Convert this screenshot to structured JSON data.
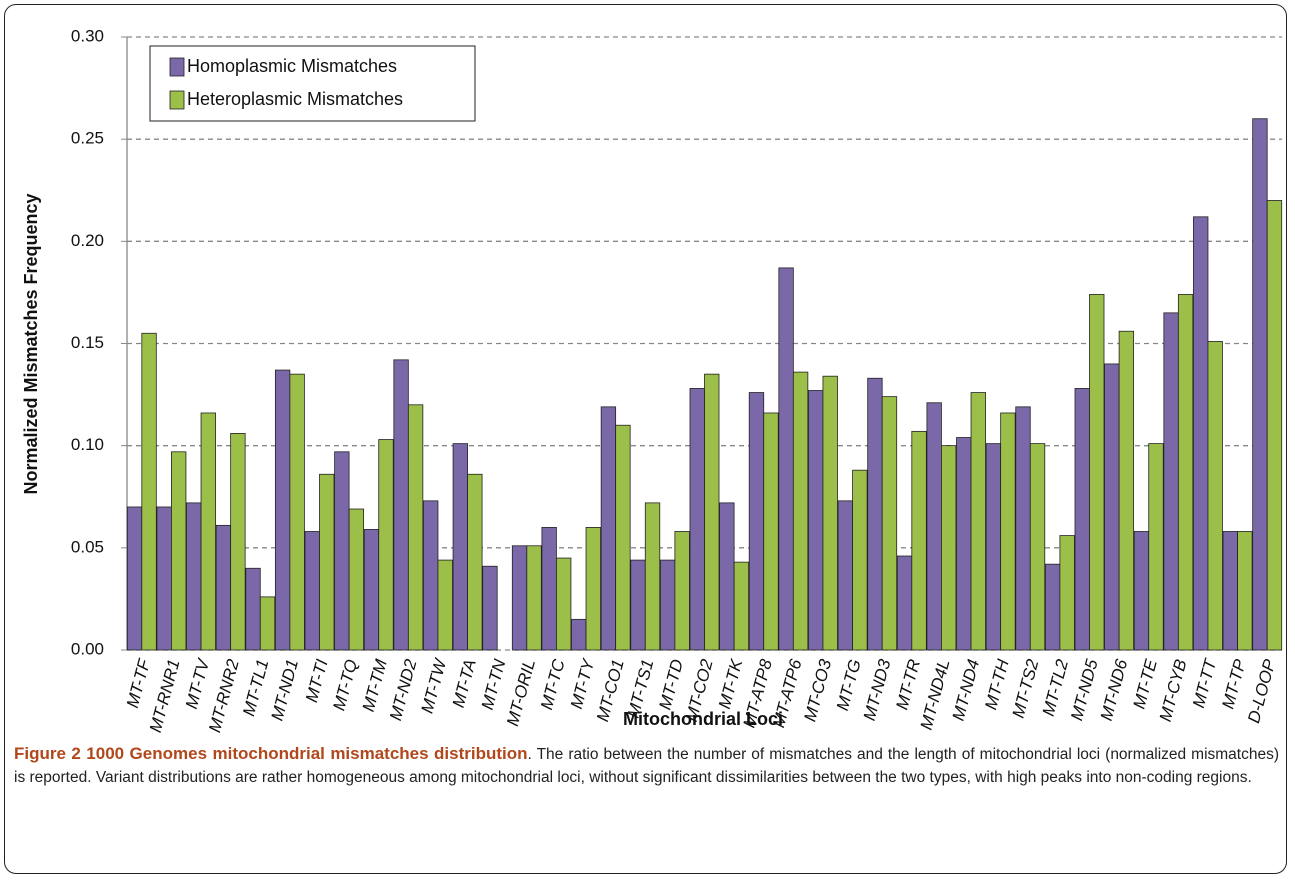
{
  "chart_data": {
    "type": "bar",
    "y_label": "Normalized Mismatches Frequency",
    "x_label": "Mitochondrial Loci",
    "categories": [
      "MT-TF",
      "MT-RNR1",
      "MT-TV",
      "MT-RNR2",
      "MT-TL1",
      "MT-ND1",
      "MT-TI",
      "MT-TQ",
      "MT-TM",
      "MT-ND2",
      "MT-TW",
      "MT-TA",
      "MT-TN",
      "MT-ORIL",
      "MT-TC",
      "MT-TY",
      "MT-CO1",
      "MT-TS1",
      "MT-TD",
      "MT-CO2",
      "MT-TK",
      "MT-ATP8",
      "MT-ATP6",
      "MT-CO3",
      "MT-TG",
      "MT-ND3",
      "MT-TR",
      "MT-ND4L",
      "MT-ND4",
      "MT-TH",
      "MT-TS2",
      "MT-TL2",
      "MT-ND5",
      "MT-ND6",
      "MT-TE",
      "MT-CYB",
      "MT-TT",
      "MT-TP",
      "D-LOOP"
    ],
    "series": [
      {
        "name": "Homoplasmic Mismatches",
        "color": "#7b68a8",
        "values": [
          0.07,
          0.07,
          0.072,
          0.061,
          0.04,
          0.137,
          0.058,
          0.097,
          0.059,
          0.142,
          0.073,
          0.101,
          0.041,
          0.051,
          0.06,
          0.015,
          0.119,
          0.044,
          0.044,
          0.128,
          0.072,
          0.126,
          0.187,
          0.127,
          0.073,
          0.133,
          0.046,
          0.121,
          0.104,
          0.101,
          0.119,
          0.042,
          0.128,
          0.14,
          0.058,
          0.165,
          0.212,
          0.058,
          0.26
        ]
      },
      {
        "name": "Heteroplasmic Mismatches",
        "color": "#9cbf4a",
        "values": [
          0.155,
          0.097,
          0.116,
          0.106,
          0.026,
          0.135,
          0.086,
          0.069,
          0.103,
          0.12,
          0.044,
          0.086,
          0,
          0.051,
          0.045,
          0.06,
          0.11,
          0.072,
          0.058,
          0.135,
          0.043,
          0.116,
          0.136,
          0.134,
          0.088,
          0.124,
          0.107,
          0.1,
          0.126,
          0.116,
          0.101,
          0.056,
          0.174,
          0.156,
          0.101,
          0.174,
          0.151,
          0.058,
          0.22
        ]
      }
    ],
    "ylim": [
      0,
      0.3
    ],
    "yticks": [
      {
        "value": 0,
        "label": "0.00"
      },
      {
        "value": 0.05,
        "label": "0.05"
      },
      {
        "value": 0.1,
        "label": "0.10"
      },
      {
        "value": 0.15,
        "label": "0.15"
      },
      {
        "value": 0.2,
        "label": "0.20"
      },
      {
        "value": 0.25,
        "label": "0.25"
      },
      {
        "value": 0.3,
        "label": "0.30"
      }
    ],
    "grid": true,
    "legend": "upper left"
  },
  "caption": {
    "label": "Figure 2 1000 Genomes mitochondrial mismatches distribution",
    "text": ". The ratio between the number of mismatches and the length of mitochondrial loci (normalized mismatches) is reported. Variant distributions are rather homogeneous among mitochondrial loci, without significant dissimilarities between the two types, with high peaks into non-coding regions."
  }
}
